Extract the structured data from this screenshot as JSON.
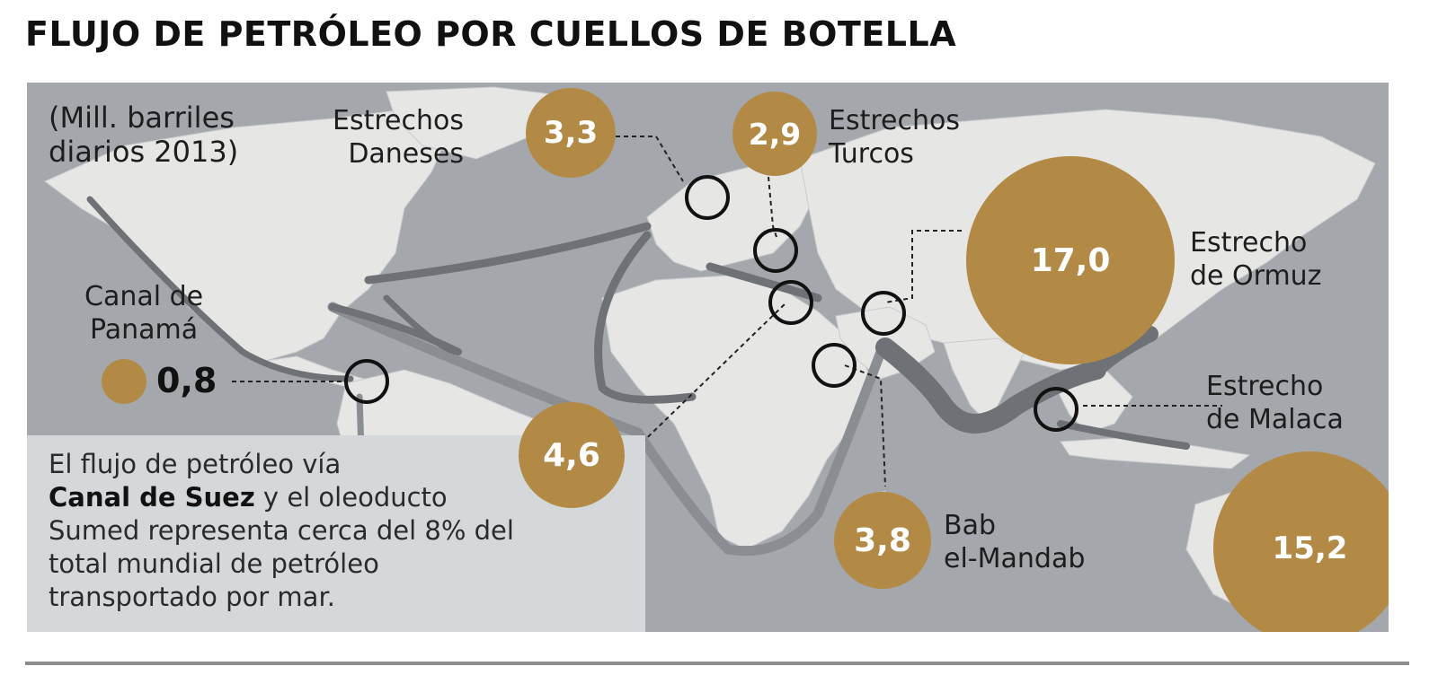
{
  "title": "FLUJO DE PETRÓLEO POR CUELLOS DE BOTELLA",
  "subtitle": [
    "(Mill. barriles",
    "diarios 2013)"
  ],
  "chokepoints": [
    {
      "id": "danish",
      "label": [
        "Estrechos",
        "Daneses"
      ],
      "value": "3,3"
    },
    {
      "id": "turkish",
      "label": [
        "Estrechos",
        "Turcos"
      ],
      "value": "2,9"
    },
    {
      "id": "hormuz",
      "label": [
        "Estrecho",
        "de Ormuz"
      ],
      "value": "17,0"
    },
    {
      "id": "panama",
      "label": [
        "Canal de",
        "Panamá"
      ],
      "value": "0,8"
    },
    {
      "id": "suez",
      "label": [],
      "value": "4,6"
    },
    {
      "id": "malacca",
      "label": [
        "Estrecho",
        "de Malaca"
      ],
      "value": "15,2"
    },
    {
      "id": "mandeb",
      "label": [
        "Bab",
        "el-Mandab"
      ],
      "value": "3,8"
    }
  ],
  "note": {
    "line1": "El flujo de petróleo vía",
    "bold": "Canal de Suez",
    "line2_rest": " y el oleoducto",
    "line3": "Sumed representa cerca del 8% del",
    "line4": "total mundial de petróleo",
    "line5": "transportado por mar."
  },
  "colors": {
    "bubble": "#b38a45",
    "ocean": "#a4a8ad",
    "land": "#e6e6e4",
    "route": "#6e7175",
    "note_box": "#d5d8db"
  }
}
